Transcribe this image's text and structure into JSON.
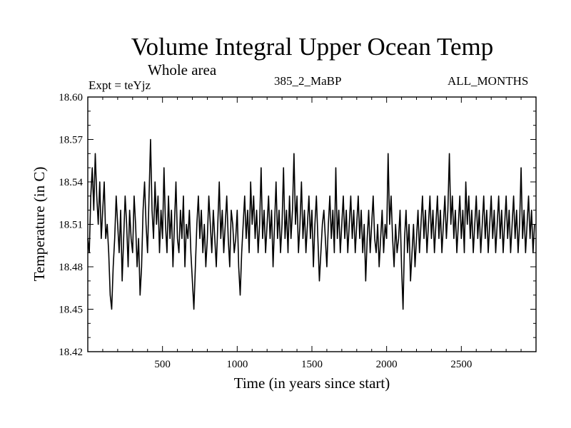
{
  "chart_data": {
    "type": "line",
    "title": "Volume Integral Upper Ocean Temp",
    "subtitle": "Whole area",
    "experiment_label": "Expt = teYjz",
    "run_label": "385_2_MaBP",
    "months_label": "ALL_MONTHS",
    "xlabel": "Time (in years since start)",
    "ylabel": "Temperature (in C)",
    "xlim": [
      0,
      3000
    ],
    "ylim": [
      18.42,
      18.6
    ],
    "x_ticks": [
      500,
      1000,
      1500,
      2000,
      2500
    ],
    "x_tick_labels": [
      "500",
      "1000",
      "1500",
      "2000",
      "2500"
    ],
    "y_ticks": [
      18.42,
      18.45,
      18.48,
      18.51,
      18.54,
      18.57,
      18.6
    ],
    "y_tick_labels": [
      "18.42",
      "18.45",
      "18.48",
      "18.51",
      "18.54",
      "18.57",
      "18.60"
    ],
    "series": [
      {
        "name": "Volume integral upper ocean temperature",
        "color": "#000000",
        "x_start": 0,
        "x_step": 10,
        "values": [
          18.5,
          18.49,
          18.53,
          18.55,
          18.52,
          18.56,
          18.53,
          18.51,
          18.54,
          18.5,
          18.52,
          18.54,
          18.5,
          18.51,
          18.49,
          18.46,
          18.45,
          18.48,
          18.5,
          18.53,
          18.51,
          18.49,
          18.52,
          18.47,
          18.5,
          18.53,
          18.51,
          18.48,
          18.52,
          18.5,
          18.49,
          18.53,
          18.51,
          18.48,
          18.5,
          18.46,
          18.48,
          18.52,
          18.54,
          18.51,
          18.49,
          18.53,
          18.57,
          18.52,
          18.5,
          18.54,
          18.51,
          18.53,
          18.49,
          18.52,
          18.5,
          18.55,
          18.51,
          18.49,
          18.53,
          18.5,
          18.52,
          18.48,
          18.51,
          18.54,
          18.5,
          18.49,
          18.52,
          18.5,
          18.53,
          18.48,
          18.51,
          18.5,
          18.52,
          18.49,
          18.47,
          18.45,
          18.48,
          18.51,
          18.53,
          18.5,
          18.52,
          18.49,
          18.51,
          18.48,
          18.5,
          18.53,
          18.51,
          18.49,
          18.52,
          18.5,
          18.48,
          18.51,
          18.54,
          18.5,
          18.52,
          18.49,
          18.51,
          18.53,
          18.5,
          18.48,
          18.52,
          18.51,
          18.49,
          18.5,
          18.52,
          18.48,
          18.46,
          18.49,
          18.51,
          18.53,
          18.5,
          18.52,
          18.49,
          18.54,
          18.51,
          18.53,
          18.5,
          18.52,
          18.49,
          18.51,
          18.55,
          18.5,
          18.52,
          18.49,
          18.51,
          18.53,
          18.5,
          18.52,
          18.48,
          18.51,
          18.54,
          18.5,
          18.52,
          18.49,
          18.51,
          18.55,
          18.5,
          18.52,
          18.49,
          18.53,
          18.5,
          18.52,
          18.56,
          18.51,
          18.53,
          18.49,
          18.51,
          18.54,
          18.5,
          18.52,
          18.49,
          18.51,
          18.53,
          18.5,
          18.52,
          18.48,
          18.51,
          18.53,
          18.5,
          18.47,
          18.49,
          18.51,
          18.52,
          18.5,
          18.48,
          18.51,
          18.53,
          18.5,
          18.52,
          18.49,
          18.55,
          18.5,
          18.52,
          18.49,
          18.51,
          18.53,
          18.5,
          18.52,
          18.49,
          18.51,
          18.53,
          18.5,
          18.52,
          18.49,
          18.51,
          18.53,
          18.5,
          18.52,
          18.49,
          18.51,
          18.47,
          18.5,
          18.52,
          18.49,
          18.51,
          18.53,
          18.5,
          18.49,
          18.51,
          18.48,
          18.5,
          18.52,
          18.49,
          18.51,
          18.5,
          18.56,
          18.51,
          18.53,
          18.5,
          18.48,
          18.51,
          18.49,
          18.5,
          18.52,
          18.48,
          18.45,
          18.5,
          18.52,
          18.49,
          18.51,
          18.47,
          18.49,
          18.51,
          18.48,
          18.5,
          18.52,
          18.49,
          18.51,
          18.53,
          18.5,
          18.52,
          18.49,
          18.51,
          18.53,
          18.5,
          18.52,
          18.49,
          18.51,
          18.53,
          18.5,
          18.52,
          18.49,
          18.51,
          18.53,
          18.5,
          18.52,
          18.56,
          18.51,
          18.53,
          18.5,
          18.52,
          18.49,
          18.51,
          18.53,
          18.5,
          18.52,
          18.49,
          18.54,
          18.51,
          18.53,
          18.5,
          18.52,
          18.49,
          18.51,
          18.53,
          18.5,
          18.52,
          18.49,
          18.51,
          18.53,
          18.5,
          18.52,
          18.49,
          18.51,
          18.53,
          18.5,
          18.52,
          18.49,
          18.51,
          18.53,
          18.5,
          18.52,
          18.49,
          18.51,
          18.53,
          18.5,
          18.52,
          18.49,
          18.51,
          18.53,
          18.5,
          18.52,
          18.49,
          18.51,
          18.55,
          18.5,
          18.52,
          18.49,
          18.51,
          18.53,
          18.5,
          18.52,
          18.49,
          18.51
        ]
      }
    ]
  }
}
